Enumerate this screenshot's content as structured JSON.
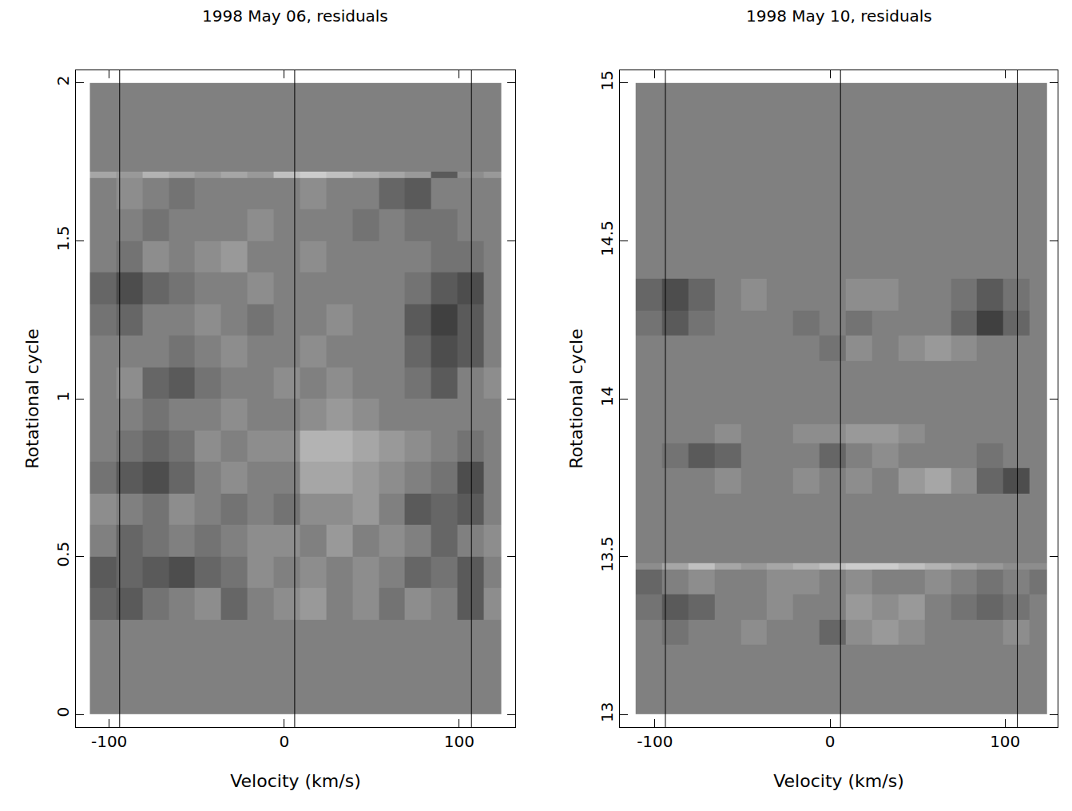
{
  "chart_data": [
    {
      "type": "heatmap",
      "title": "1998 May 06, residuals",
      "x_label": "Velocity (km/s)",
      "y_label": "Rotational cycle",
      "xlim": [
        -119,
        132
      ],
      "ylim": [
        -0.04,
        2.04
      ],
      "xticks": [
        -100,
        0,
        100
      ],
      "yticks": [
        0,
        0.5,
        1,
        1.5,
        2
      ],
      "vlines": [
        -94,
        6,
        107
      ],
      "zlim": [
        -1,
        1
      ],
      "x_bins": [
        -111,
        -96,
        -81,
        -66,
        -51,
        -36,
        -21,
        -6,
        9,
        24,
        39,
        54,
        69,
        84,
        99,
        114,
        124
      ],
      "y_bins": [
        0,
        0.3,
        0.4,
        0.5,
        0.6,
        0.7,
        0.8,
        0.9,
        1.0,
        1.1,
        1.2,
        1.3,
        1.4,
        1.5,
        1.6,
        1.7,
        1.72,
        2.0
      ],
      "z": [
        [
          0,
          0,
          0,
          0,
          0,
          0,
          0,
          0,
          0,
          0,
          0,
          0,
          0,
          0,
          0,
          0
        ],
        [
          -0.2,
          -0.3,
          -0.1,
          0,
          0.1,
          -0.2,
          0,
          0.1,
          0.2,
          0,
          0.1,
          -0.1,
          0.1,
          0,
          -0.3,
          0.1
        ],
        [
          -0.3,
          -0.2,
          -0.3,
          -0.4,
          -0.2,
          -0.1,
          0.1,
          0,
          0.1,
          0,
          0.1,
          0,
          -0.2,
          -0.1,
          -0.3,
          0
        ],
        [
          0,
          -0.2,
          -0.1,
          0,
          -0.1,
          0,
          0.1,
          0.1,
          0,
          0.2,
          0,
          0.1,
          0,
          -0.2,
          0,
          0.1
        ],
        [
          0.1,
          0,
          -0.1,
          0.1,
          0,
          -0.1,
          0,
          -0.1,
          0.1,
          0.1,
          0.2,
          0,
          -0.3,
          -0.2,
          -0.3,
          0
        ],
        [
          -0.1,
          -0.3,
          -0.4,
          -0.2,
          0,
          0.1,
          0,
          0,
          0.3,
          0.3,
          0.2,
          0.1,
          0,
          -0.1,
          -0.4,
          0
        ],
        [
          0,
          -0.1,
          -0.2,
          -0.1,
          0.1,
          0,
          0.1,
          0.1,
          0.4,
          0.4,
          0.3,
          0.2,
          0.1,
          0,
          -0.1,
          0
        ],
        [
          0,
          0,
          -0.1,
          0,
          0,
          0.1,
          0,
          0,
          0.1,
          0.2,
          0.1,
          0,
          0,
          0,
          0,
          0
        ],
        [
          0,
          0.1,
          -0.2,
          -0.3,
          -0.1,
          0,
          0,
          0.1,
          0,
          0.1,
          0,
          0,
          -0.1,
          -0.3,
          0,
          0.1
        ],
        [
          0,
          0,
          0,
          -0.1,
          0,
          0.1,
          0,
          0,
          0.1,
          0,
          0,
          0,
          -0.2,
          -0.4,
          -0.3,
          0
        ],
        [
          -0.1,
          -0.2,
          0,
          0,
          0.1,
          0,
          -0.1,
          0,
          0,
          0.1,
          0,
          0,
          -0.3,
          -0.5,
          -0.3,
          0
        ],
        [
          -0.2,
          -0.4,
          -0.2,
          -0.1,
          0,
          0,
          0.1,
          0,
          0,
          0,
          0,
          0,
          -0.1,
          -0.3,
          -0.4,
          0
        ],
        [
          0,
          -0.1,
          0.1,
          0,
          0.1,
          0.2,
          0,
          0,
          0.1,
          0,
          0,
          0,
          0,
          -0.1,
          -0.1,
          0
        ],
        [
          0,
          0,
          -0.1,
          0,
          0,
          0,
          0.1,
          0,
          0,
          0,
          -0.1,
          0,
          -0.1,
          -0.1,
          0,
          0
        ],
        [
          0,
          0.1,
          0,
          -0.1,
          0,
          0,
          0,
          0,
          0.1,
          0,
          0,
          -0.2,
          -0.3,
          0,
          0,
          0
        ],
        [
          0.3,
          0.2,
          0.4,
          0.3,
          0.2,
          0.3,
          0.2,
          0.5,
          0.6,
          0.5,
          0.4,
          0.3,
          0.2,
          -0.3,
          0.1,
          0.2
        ],
        [
          0,
          0,
          0,
          0,
          0,
          0,
          0,
          0,
          0,
          0,
          0,
          0,
          0,
          0,
          0,
          0
        ]
      ]
    },
    {
      "type": "heatmap",
      "title": "1998 May 10, residuals",
      "x_label": "Velocity (km/s)",
      "y_label": "Rotational cycle",
      "xlim": [
        -120,
        130
      ],
      "ylim": [
        12.96,
        15.04
      ],
      "xticks": [
        -100,
        0,
        100
      ],
      "yticks": [
        13,
        13.5,
        14,
        14.5,
        15
      ],
      "vlines": [
        -94,
        6,
        107
      ],
      "zlim": [
        -1,
        1
      ],
      "x_bins": [
        -111,
        -96,
        -81,
        -66,
        -51,
        -36,
        -21,
        -6,
        9,
        24,
        39,
        54,
        69,
        84,
        99,
        114,
        124
      ],
      "y_bins": [
        13,
        13.22,
        13.3,
        13.38,
        13.46,
        13.48,
        13.7,
        13.78,
        13.86,
        13.92,
        14.12,
        14.2,
        14.28,
        14.38,
        15
      ],
      "z": [
        [
          0,
          0,
          0,
          0,
          0,
          0,
          0,
          0,
          0,
          0,
          0,
          0,
          0,
          0,
          0,
          0
        ],
        [
          0,
          -0.1,
          0,
          0,
          0.1,
          0,
          0,
          -0.2,
          0.1,
          0.2,
          0.1,
          0,
          0,
          0,
          0.1,
          0
        ],
        [
          -0.1,
          -0.3,
          -0.2,
          0,
          0,
          0.1,
          0,
          0,
          0.2,
          0.1,
          0.2,
          0,
          -0.1,
          -0.2,
          -0.1,
          0
        ],
        [
          -0.2,
          0,
          0.1,
          0,
          0,
          0.1,
          0.1,
          0,
          0.1,
          0,
          0,
          0.1,
          0,
          -0.1,
          0,
          -0.1
        ],
        [
          0.1,
          0.3,
          0.5,
          0.3,
          0.2,
          0.3,
          0.4,
          0.5,
          0.6,
          0.6,
          0.5,
          0.4,
          0.3,
          0.2,
          0.1,
          0.1
        ],
        [
          0,
          0,
          0,
          0,
          0,
          0,
          0,
          0,
          0,
          0,
          0,
          0,
          0,
          0,
          0,
          0
        ],
        [
          0,
          0,
          0,
          0.1,
          0,
          0,
          0.1,
          0,
          0.1,
          0,
          0.2,
          0.3,
          0.1,
          -0.2,
          -0.4,
          0
        ],
        [
          0,
          -0.1,
          -0.3,
          -0.2,
          0,
          0,
          0,
          -0.2,
          0,
          0.1,
          0,
          0,
          0,
          -0.1,
          0,
          0
        ],
        [
          0,
          0,
          0,
          0.1,
          0,
          0,
          0.1,
          0.1,
          0.2,
          0.2,
          0.1,
          0,
          0,
          0,
          0,
          0
        ],
        [
          0,
          0,
          0,
          0,
          0,
          0,
          0,
          0,
          0,
          0,
          0,
          0,
          0,
          0,
          0,
          0
        ],
        [
          0,
          0,
          0,
          0,
          0,
          0,
          0,
          -0.1,
          0.1,
          0,
          0.1,
          0.2,
          0.1,
          0,
          0,
          0
        ],
        [
          -0.1,
          -0.3,
          -0.1,
          0,
          0,
          0,
          -0.1,
          0,
          -0.1,
          0,
          0,
          0,
          -0.2,
          -0.5,
          -0.2,
          0
        ],
        [
          -0.2,
          -0.4,
          -0.2,
          0,
          0.1,
          0,
          0,
          0,
          0.1,
          0.1,
          0,
          0,
          -0.1,
          -0.3,
          -0.1,
          0
        ],
        [
          0,
          0,
          0,
          0,
          0,
          0,
          0,
          0,
          0,
          0,
          0,
          0,
          0,
          0,
          0,
          0
        ]
      ]
    }
  ]
}
